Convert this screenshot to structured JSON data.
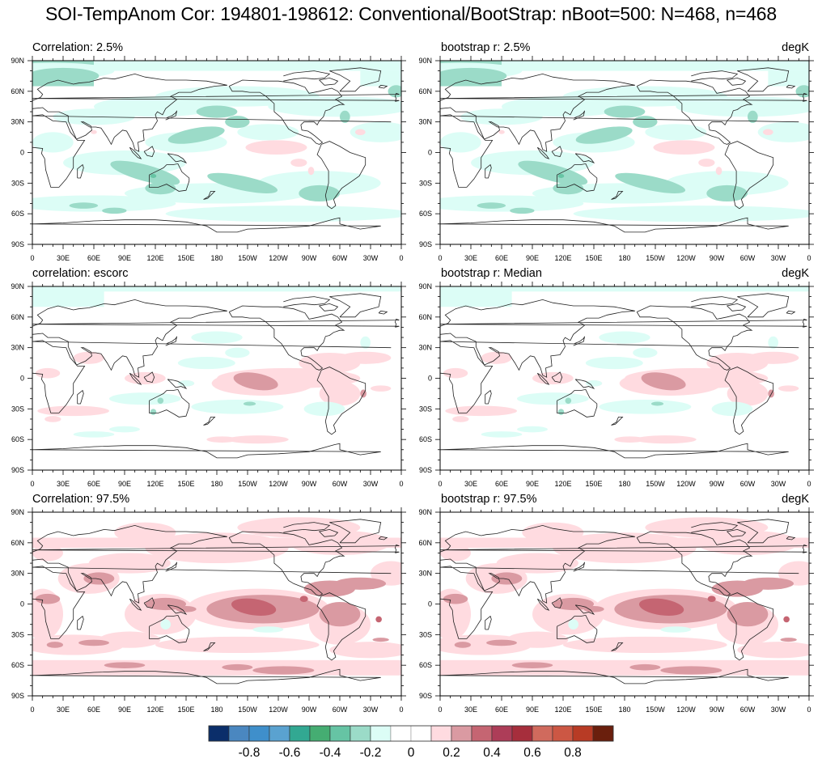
{
  "title": "SOI-TempAnom Cor: 194801-198612: Conventional/BootStrap: nBoot=500: N=468, n=468",
  "colors": {
    "levels_fill": [
      "#0b2e6a",
      "#4a87c0",
      "#3f8fcb",
      "#5aa2d0",
      "#32a892",
      "#45ad72",
      "#66c4a4",
      "#9bdbc8",
      "#dcfdf6",
      "#ffffff",
      "#ffffff",
      "#ffdbe0",
      "#da9aa2",
      "#c56572",
      "#ad3d58",
      "#a62e3c",
      "#d06a5d",
      "#cc5744",
      "#b83b25",
      "#6a1f0d"
    ],
    "neg1": "#dcfdf6",
    "neg2": "#9bdbc8",
    "neg3": "#66c4a4",
    "pos1": "#ffdbe0",
    "pos2": "#da9aa2",
    "pos3": "#c56572"
  },
  "chart_data": [
    {
      "type": "heatmap",
      "panel": "top-left",
      "title": "Correlation:  2.5%",
      "units": "",
      "map_projection": "cylindrical equidistant",
      "xlim": [
        0,
        360
      ],
      "ylim": [
        -90,
        90
      ],
      "dominant": "negative",
      "features": {
        "tropical_pacific_max": 0.15,
        "southern_indian_min": -0.35,
        "north_atlantic_min": -0.3
      }
    },
    {
      "type": "heatmap",
      "panel": "top-right",
      "title": "bootstrap r:  2.5%",
      "units": "degK",
      "map_projection": "cylindrical equidistant",
      "xlim": [
        0,
        360
      ],
      "ylim": [
        -90,
        90
      ],
      "dominant": "negative",
      "features": {
        "tropical_pacific_max": 0.15,
        "southern_indian_min": -0.35,
        "north_atlantic_min": -0.3
      }
    },
    {
      "type": "heatmap",
      "panel": "middle-left",
      "title": "correlation: escorc",
      "units": "",
      "map_projection": "cylindrical equidistant",
      "xlim": [
        0,
        360
      ],
      "ylim": [
        -90,
        90
      ],
      "dominant": "mixed",
      "features": {
        "tropical_pacific_max": 0.35,
        "south_pacific_min": -0.25
      }
    },
    {
      "type": "heatmap",
      "panel": "middle-right",
      "title": "bootstrap r: Median",
      "units": "degK",
      "map_projection": "cylindrical equidistant",
      "xlim": [
        0,
        360
      ],
      "ylim": [
        -90,
        90
      ],
      "dominant": "mixed",
      "features": {
        "tropical_pacific_max": 0.35,
        "south_pacific_min": -0.25
      }
    },
    {
      "type": "heatmap",
      "panel": "bottom-left",
      "title": "Correlation: 97.5%",
      "units": "",
      "map_projection": "cylindrical equidistant",
      "xlim": [
        0,
        360
      ],
      "ylim": [
        -90,
        90
      ],
      "dominant": "positive",
      "features": {
        "tropical_pacific_max": 0.45,
        "australia_min": -0.15
      }
    },
    {
      "type": "heatmap",
      "panel": "bottom-right",
      "title": "bootstrap r:  97.5%",
      "units": "degK",
      "map_projection": "cylindrical equidistant",
      "xlim": [
        0,
        360
      ],
      "ylim": [
        -90,
        90
      ],
      "dominant": "positive",
      "features": {
        "tropical_pacific_max": 0.45,
        "australia_min": -0.15
      }
    }
  ],
  "axes": {
    "x_ticks": [
      "0",
      "30E",
      "60E",
      "90E",
      "120E",
      "150E",
      "180",
      "150W",
      "120W",
      "90W",
      "60W",
      "30W",
      "0"
    ],
    "y_ticks": [
      "90S",
      "60S",
      "30S",
      "0",
      "30N",
      "60N",
      "90N"
    ]
  },
  "colorbar": {
    "levels": [
      -0.9,
      -0.8,
      -0.7,
      -0.6,
      -0.5,
      -0.4,
      -0.3,
      -0.2,
      -0.1,
      0,
      0.1,
      0.2,
      0.3,
      0.4,
      0.5,
      0.6,
      0.7,
      0.8,
      0.9
    ],
    "labels": [
      "-0.8",
      "-0.6",
      "-0.4",
      "-0.2",
      "0",
      "0.2",
      "0.4",
      "0.6",
      "0.8"
    ],
    "label_values": [
      -0.8,
      -0.6,
      -0.4,
      -0.2,
      0,
      0.2,
      0.4,
      0.6,
      0.8
    ]
  },
  "panels": [
    {
      "title": "Correlation:  2.5%",
      "units": ""
    },
    {
      "title": "bootstrap r:  2.5%",
      "units": "degK"
    },
    {
      "title": "correlation: escorc",
      "units": ""
    },
    {
      "title": "bootstrap r: Median",
      "units": "degK"
    },
    {
      "title": "Correlation: 97.5%",
      "units": ""
    },
    {
      "title": "bootstrap r:  97.5%",
      "units": "degK"
    }
  ]
}
